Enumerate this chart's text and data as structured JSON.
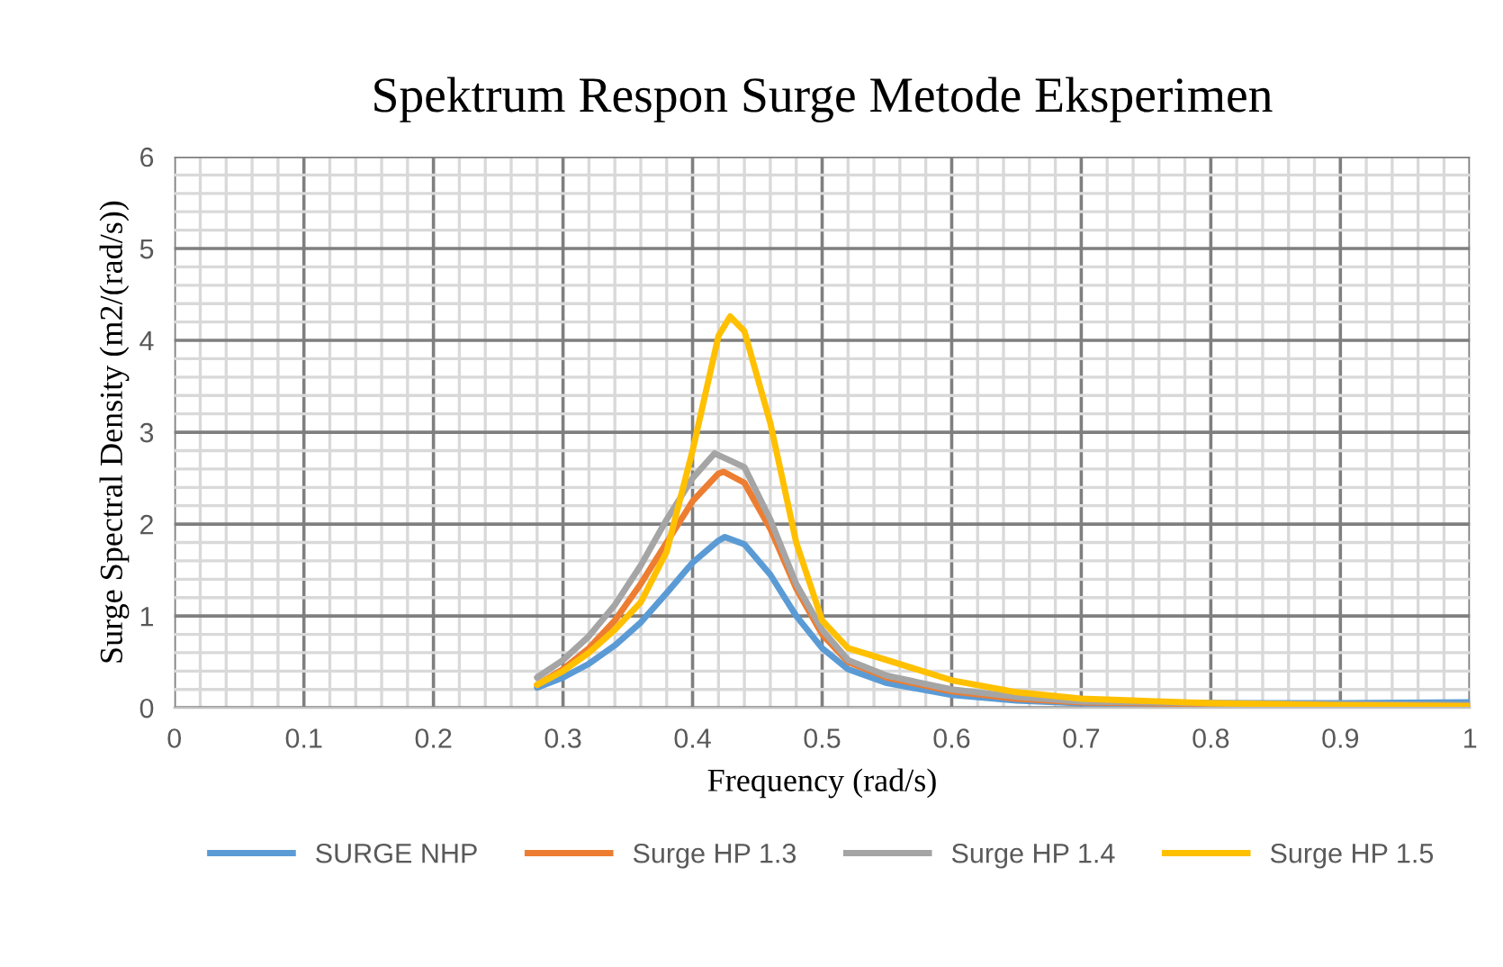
{
  "chart_data": {
    "type": "line",
    "title": "Spektrum Respon Surge Metode Eksperimen",
    "xlabel": "Frequency (rad/s)",
    "ylabel": "Surge Spectral Density (m2/(rad/s))",
    "xlim": [
      0,
      1
    ],
    "ylim": [
      0,
      6
    ],
    "xticks": [
      0,
      0.1,
      0.2,
      0.3,
      0.4,
      0.5,
      0.6,
      0.7,
      0.8,
      0.9,
      1
    ],
    "yticks": [
      0,
      1,
      2,
      3,
      4,
      5,
      6
    ],
    "grid": true,
    "legend": "bottom",
    "marker": "none",
    "line_style": "solid",
    "series": [
      {
        "name": "SURGE NHP",
        "color": "#5b9bd5",
        "x": [
          0.28,
          0.3,
          0.32,
          0.34,
          0.36,
          0.38,
          0.4,
          0.42,
          0.425,
          0.44,
          0.46,
          0.48,
          0.5,
          0.52,
          0.55,
          0.6,
          0.65,
          0.7,
          0.8,
          0.9,
          1.0
        ],
        "values": [
          0.22,
          0.33,
          0.48,
          0.68,
          0.93,
          1.25,
          1.58,
          1.82,
          1.86,
          1.78,
          1.45,
          1.0,
          0.65,
          0.42,
          0.27,
          0.14,
          0.08,
          0.05,
          0.05,
          0.05,
          0.06
        ]
      },
      {
        "name": "Surge HP 1.3",
        "color": "#ed7d31",
        "x": [
          0.28,
          0.3,
          0.32,
          0.34,
          0.36,
          0.38,
          0.4,
          0.42,
          0.424,
          0.44,
          0.46,
          0.48,
          0.5,
          0.52,
          0.55,
          0.6,
          0.65,
          0.7,
          0.8,
          0.9,
          1.0
        ],
        "values": [
          0.25,
          0.42,
          0.65,
          0.95,
          1.35,
          1.8,
          2.25,
          2.55,
          2.57,
          2.45,
          1.95,
          1.3,
          0.8,
          0.5,
          0.33,
          0.18,
          0.1,
          0.06,
          0.04,
          0.03,
          0.03
        ]
      },
      {
        "name": "Surge HP 1.4",
        "color": "#a5a5a5",
        "x": [
          0.28,
          0.3,
          0.32,
          0.34,
          0.36,
          0.38,
          0.4,
          0.417,
          0.44,
          0.46,
          0.48,
          0.5,
          0.52,
          0.55,
          0.6,
          0.65,
          0.7,
          0.8,
          0.9,
          1.0
        ],
        "values": [
          0.33,
          0.52,
          0.78,
          1.12,
          1.55,
          2.05,
          2.5,
          2.77,
          2.62,
          2.05,
          1.35,
          0.85,
          0.52,
          0.35,
          0.2,
          0.12,
          0.07,
          0.05,
          0.04,
          0.03
        ]
      },
      {
        "name": "Surge HP 1.5",
        "color": "#ffc000",
        "x": [
          0.28,
          0.3,
          0.32,
          0.34,
          0.36,
          0.38,
          0.4,
          0.42,
          0.429,
          0.44,
          0.46,
          0.48,
          0.5,
          0.52,
          0.55,
          0.6,
          0.65,
          0.7,
          0.8,
          0.9,
          1.0
        ],
        "values": [
          0.25,
          0.4,
          0.6,
          0.85,
          1.15,
          1.7,
          2.8,
          4.05,
          4.26,
          4.1,
          3.1,
          1.8,
          0.95,
          0.65,
          0.52,
          0.3,
          0.17,
          0.1,
          0.05,
          0.03,
          0.02
        ]
      }
    ]
  }
}
